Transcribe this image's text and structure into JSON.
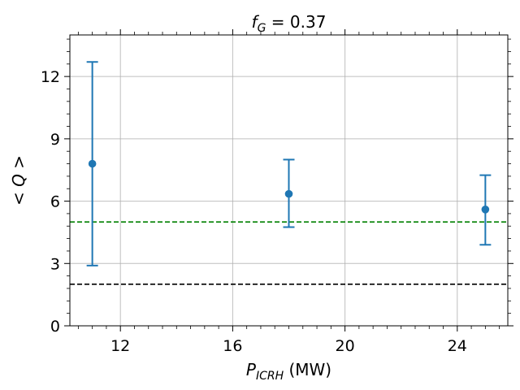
{
  "chart_data": {
    "type": "scatter",
    "title_var": "f",
    "title_sub": "G",
    "title_rest": " = 0.37",
    "xlabel_var": "P",
    "xlabel_sub": "ICRH",
    "xlabel_unit": " (MW)",
    "ylabel": "< Q >",
    "xlim": [
      10.2,
      25.8
    ],
    "ylim": [
      0,
      14
    ],
    "x_ticks": [
      12,
      16,
      20,
      24
    ],
    "y_ticks": [
      0,
      3,
      6,
      9,
      12
    ],
    "grid": true,
    "series": [
      {
        "color": "#1f77b4",
        "points": [
          {
            "x": 11,
            "y": 7.8,
            "ylow": 2.9,
            "yhigh": 12.7
          },
          {
            "x": 18,
            "y": 6.35,
            "ylow": 4.75,
            "yhigh": 8.0
          },
          {
            "x": 25,
            "y": 5.6,
            "ylow": 3.9,
            "yhigh": 7.25
          }
        ]
      }
    ],
    "hlines": [
      {
        "y": 5,
        "color": "#008000",
        "style": "dashed"
      },
      {
        "y": 2,
        "color": "#000000",
        "style": "dashed"
      }
    ]
  }
}
